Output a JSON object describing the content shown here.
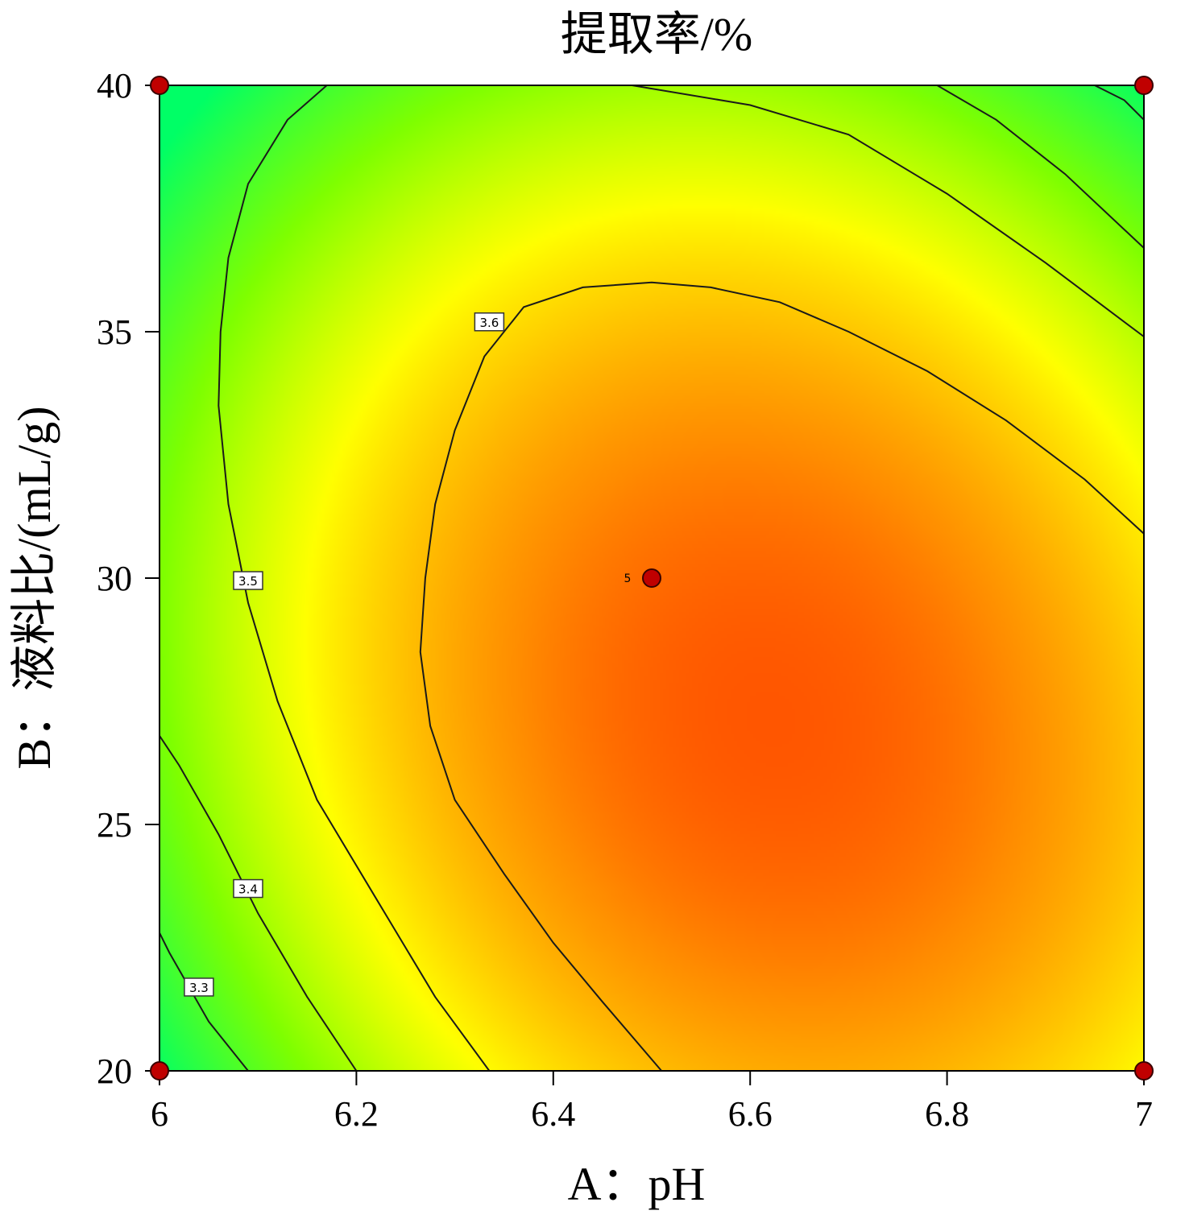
{
  "chart_data": {
    "type": "contour",
    "title": "提取率/%",
    "xlabel": "A：pH",
    "ylabel": "B：液料比/(mL/g)",
    "xlim": [
      6,
      7
    ],
    "ylim": [
      20,
      40
    ],
    "x_ticks": [
      6,
      6.2,
      6.4,
      6.6,
      6.8,
      7
    ],
    "x_tick_labels": [
      "6",
      "6.2",
      "6.4",
      "6.6",
      "6.8",
      "7"
    ],
    "y_ticks": [
      20,
      25,
      30,
      35,
      40
    ],
    "y_tick_labels": [
      "20",
      "25",
      "30",
      "35",
      "40"
    ],
    "contour_levels": [
      3.3,
      3.4,
      3.5,
      3.6
    ],
    "contours": [
      {
        "level": 3.6,
        "label": "3.6",
        "label_at": [
          6.335,
          35.2
        ],
        "paths": [
          [
            [
              6.51,
              20
            ],
            [
              6.45,
              21.4
            ],
            [
              6.4,
              22.6
            ],
            [
              6.35,
              24
            ],
            [
              6.3,
              25.5
            ],
            [
              6.275,
              27
            ],
            [
              6.265,
              28.5
            ],
            [
              6.27,
              30
            ],
            [
              6.28,
              31.5
            ],
            [
              6.3,
              33
            ],
            [
              6.33,
              34.5
            ],
            [
              6.37,
              35.5
            ],
            [
              6.43,
              35.9
            ],
            [
              6.5,
              36
            ],
            [
              6.56,
              35.9
            ],
            [
              6.63,
              35.6
            ],
            [
              6.7,
              35
            ],
            [
              6.78,
              34.2
            ],
            [
              6.86,
              33.2
            ],
            [
              6.94,
              32
            ],
            [
              7,
              30.9
            ]
          ]
        ]
      },
      {
        "level": 3.5,
        "label": "3.5",
        "label_at": [
          6.09,
          29.95
        ],
        "paths": [
          [
            [
              6.335,
              20
            ],
            [
              6.28,
              21.5
            ],
            [
              6.22,
              23.5
            ],
            [
              6.16,
              25.5
            ],
            [
              6.12,
              27.5
            ],
            [
              6.09,
              29.5
            ],
            [
              6.07,
              31.5
            ],
            [
              6.06,
              33.5
            ],
            [
              6.062,
              35
            ],
            [
              6.07,
              36.5
            ],
            [
              6.09,
              38
            ],
            [
              6.13,
              39.3
            ],
            [
              6.17,
              40
            ]
          ],
          [
            [
              6.48,
              40
            ],
            [
              6.6,
              39.6
            ],
            [
              6.7,
              39
            ],
            [
              6.8,
              37.8
            ],
            [
              6.9,
              36.4
            ],
            [
              7,
              34.9
            ]
          ]
        ]
      },
      {
        "level": 3.4,
        "label": "3.4",
        "label_at": [
          6.09,
          23.7
        ],
        "paths": [
          [
            [
              6.2,
              20
            ],
            [
              6.15,
              21.5
            ],
            [
              6.1,
              23.2
            ],
            [
              6.06,
              24.8
            ],
            [
              6.02,
              26.2
            ],
            [
              6,
              26.8
            ]
          ],
          [
            [
              6.79,
              40
            ],
            [
              6.85,
              39.3
            ],
            [
              6.92,
              38.2
            ],
            [
              7,
              36.7
            ]
          ]
        ]
      },
      {
        "level": 3.3,
        "label": "3.3",
        "label_at": [
          6.04,
          21.7
        ],
        "paths": [
          [
            [
              6.09,
              20
            ],
            [
              6.05,
              21
            ],
            [
              6.01,
              22.4
            ],
            [
              6,
              22.8
            ]
          ],
          [
            [
              6.95,
              40
            ],
            [
              6.98,
              39.7
            ],
            [
              7,
              39.3
            ]
          ]
        ]
      }
    ],
    "design_points": [
      {
        "x": 6,
        "y": 40
      },
      {
        "x": 7,
        "y": 40
      },
      {
        "x": 6,
        "y": 20
      },
      {
        "x": 7,
        "y": 20
      },
      {
        "x": 6.5,
        "y": 30,
        "count_label": "5"
      }
    ],
    "colormap": {
      "low": "#00ff66",
      "mid1": "#7fff00",
      "mid2": "#ffff00",
      "mid3": "#ff8c00",
      "high": "#ff2200"
    },
    "point_color": "#c00000"
  }
}
